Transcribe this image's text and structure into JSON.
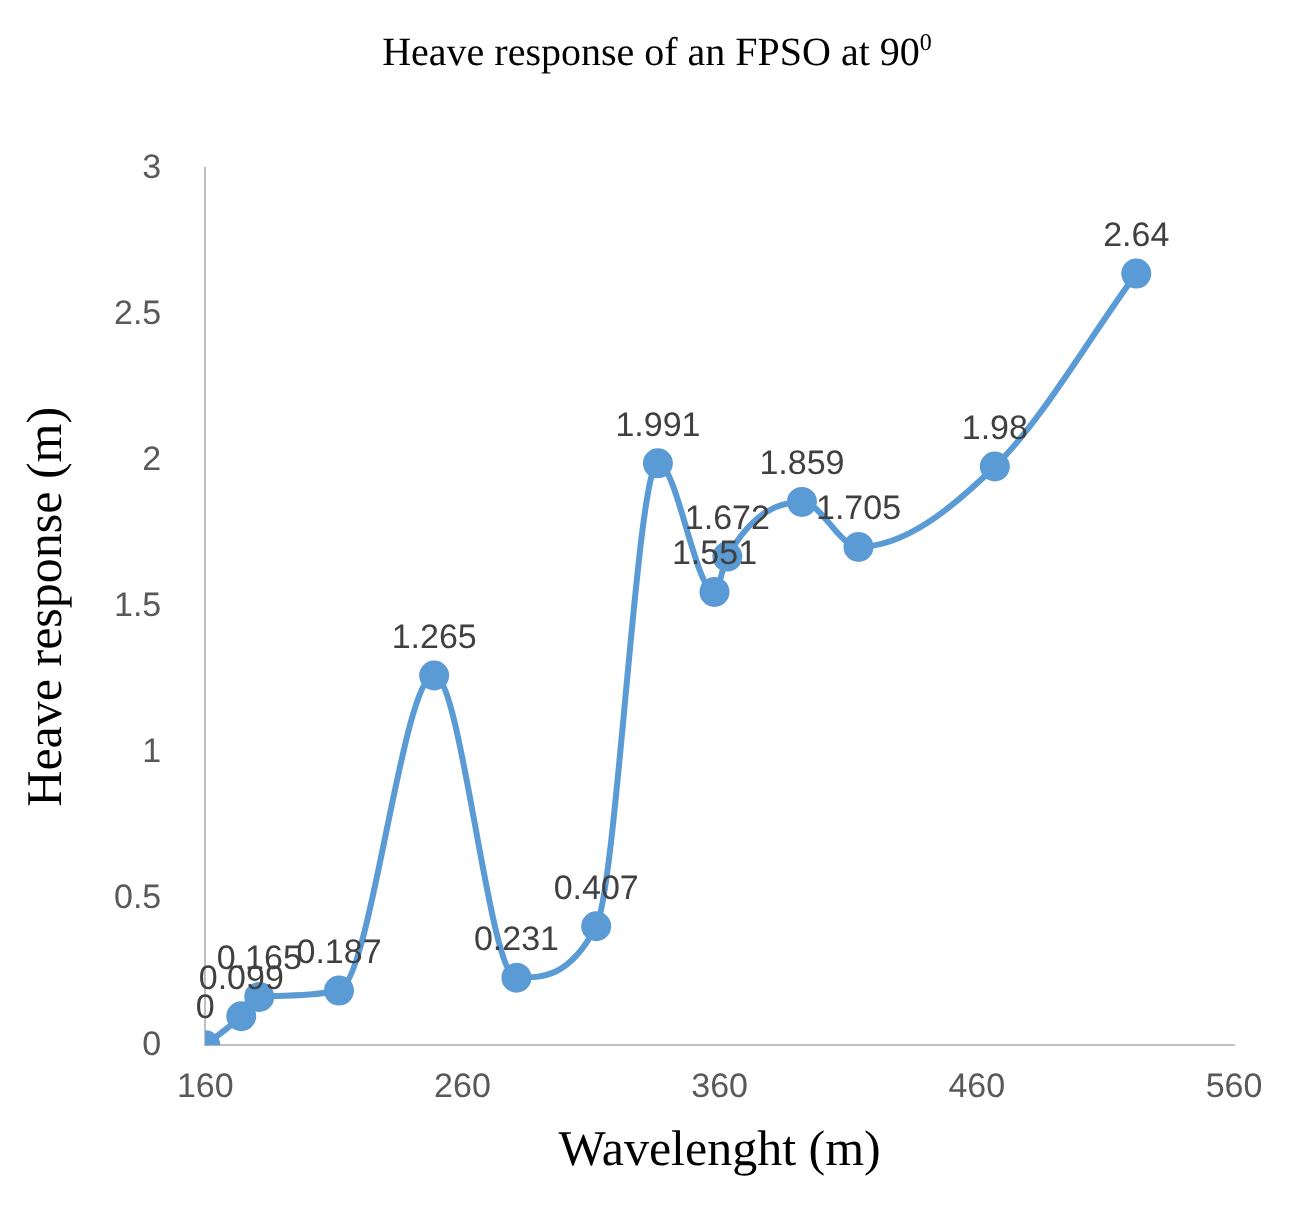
{
  "chart_data": {
    "type": "line",
    "title": "Heave response of an FPSO at 90$^{0}$",
    "xlabel": "Wavelenght (m)",
    "ylabel": "Heave response (m)",
    "x": [
      160,
      174,
      181,
      212,
      249,
      281,
      312,
      336,
      358,
      363,
      392,
      414,
      467,
      522
    ],
    "series": [
      {
        "color": "#5b9bd5",
        "values": [
          0,
          0.099,
          0.165,
          0.187,
          1.265,
          0.231,
          0.407,
          1.991,
          1.551,
          1.672,
          1.859,
          1.705,
          1.98,
          2.64
        ]
      }
    ],
    "xlim": [
      160,
      560
    ],
    "xticks": [
      160,
      260,
      360,
      460,
      560
    ],
    "ylim": [
      0,
      3
    ],
    "yticks": [
      0,
      0.5,
      1,
      1.5,
      2,
      2.5,
      3
    ],
    "grid": false,
    "legend": false,
    "marker": "circle",
    "line_style": "solid",
    "data_labels": true
  }
}
